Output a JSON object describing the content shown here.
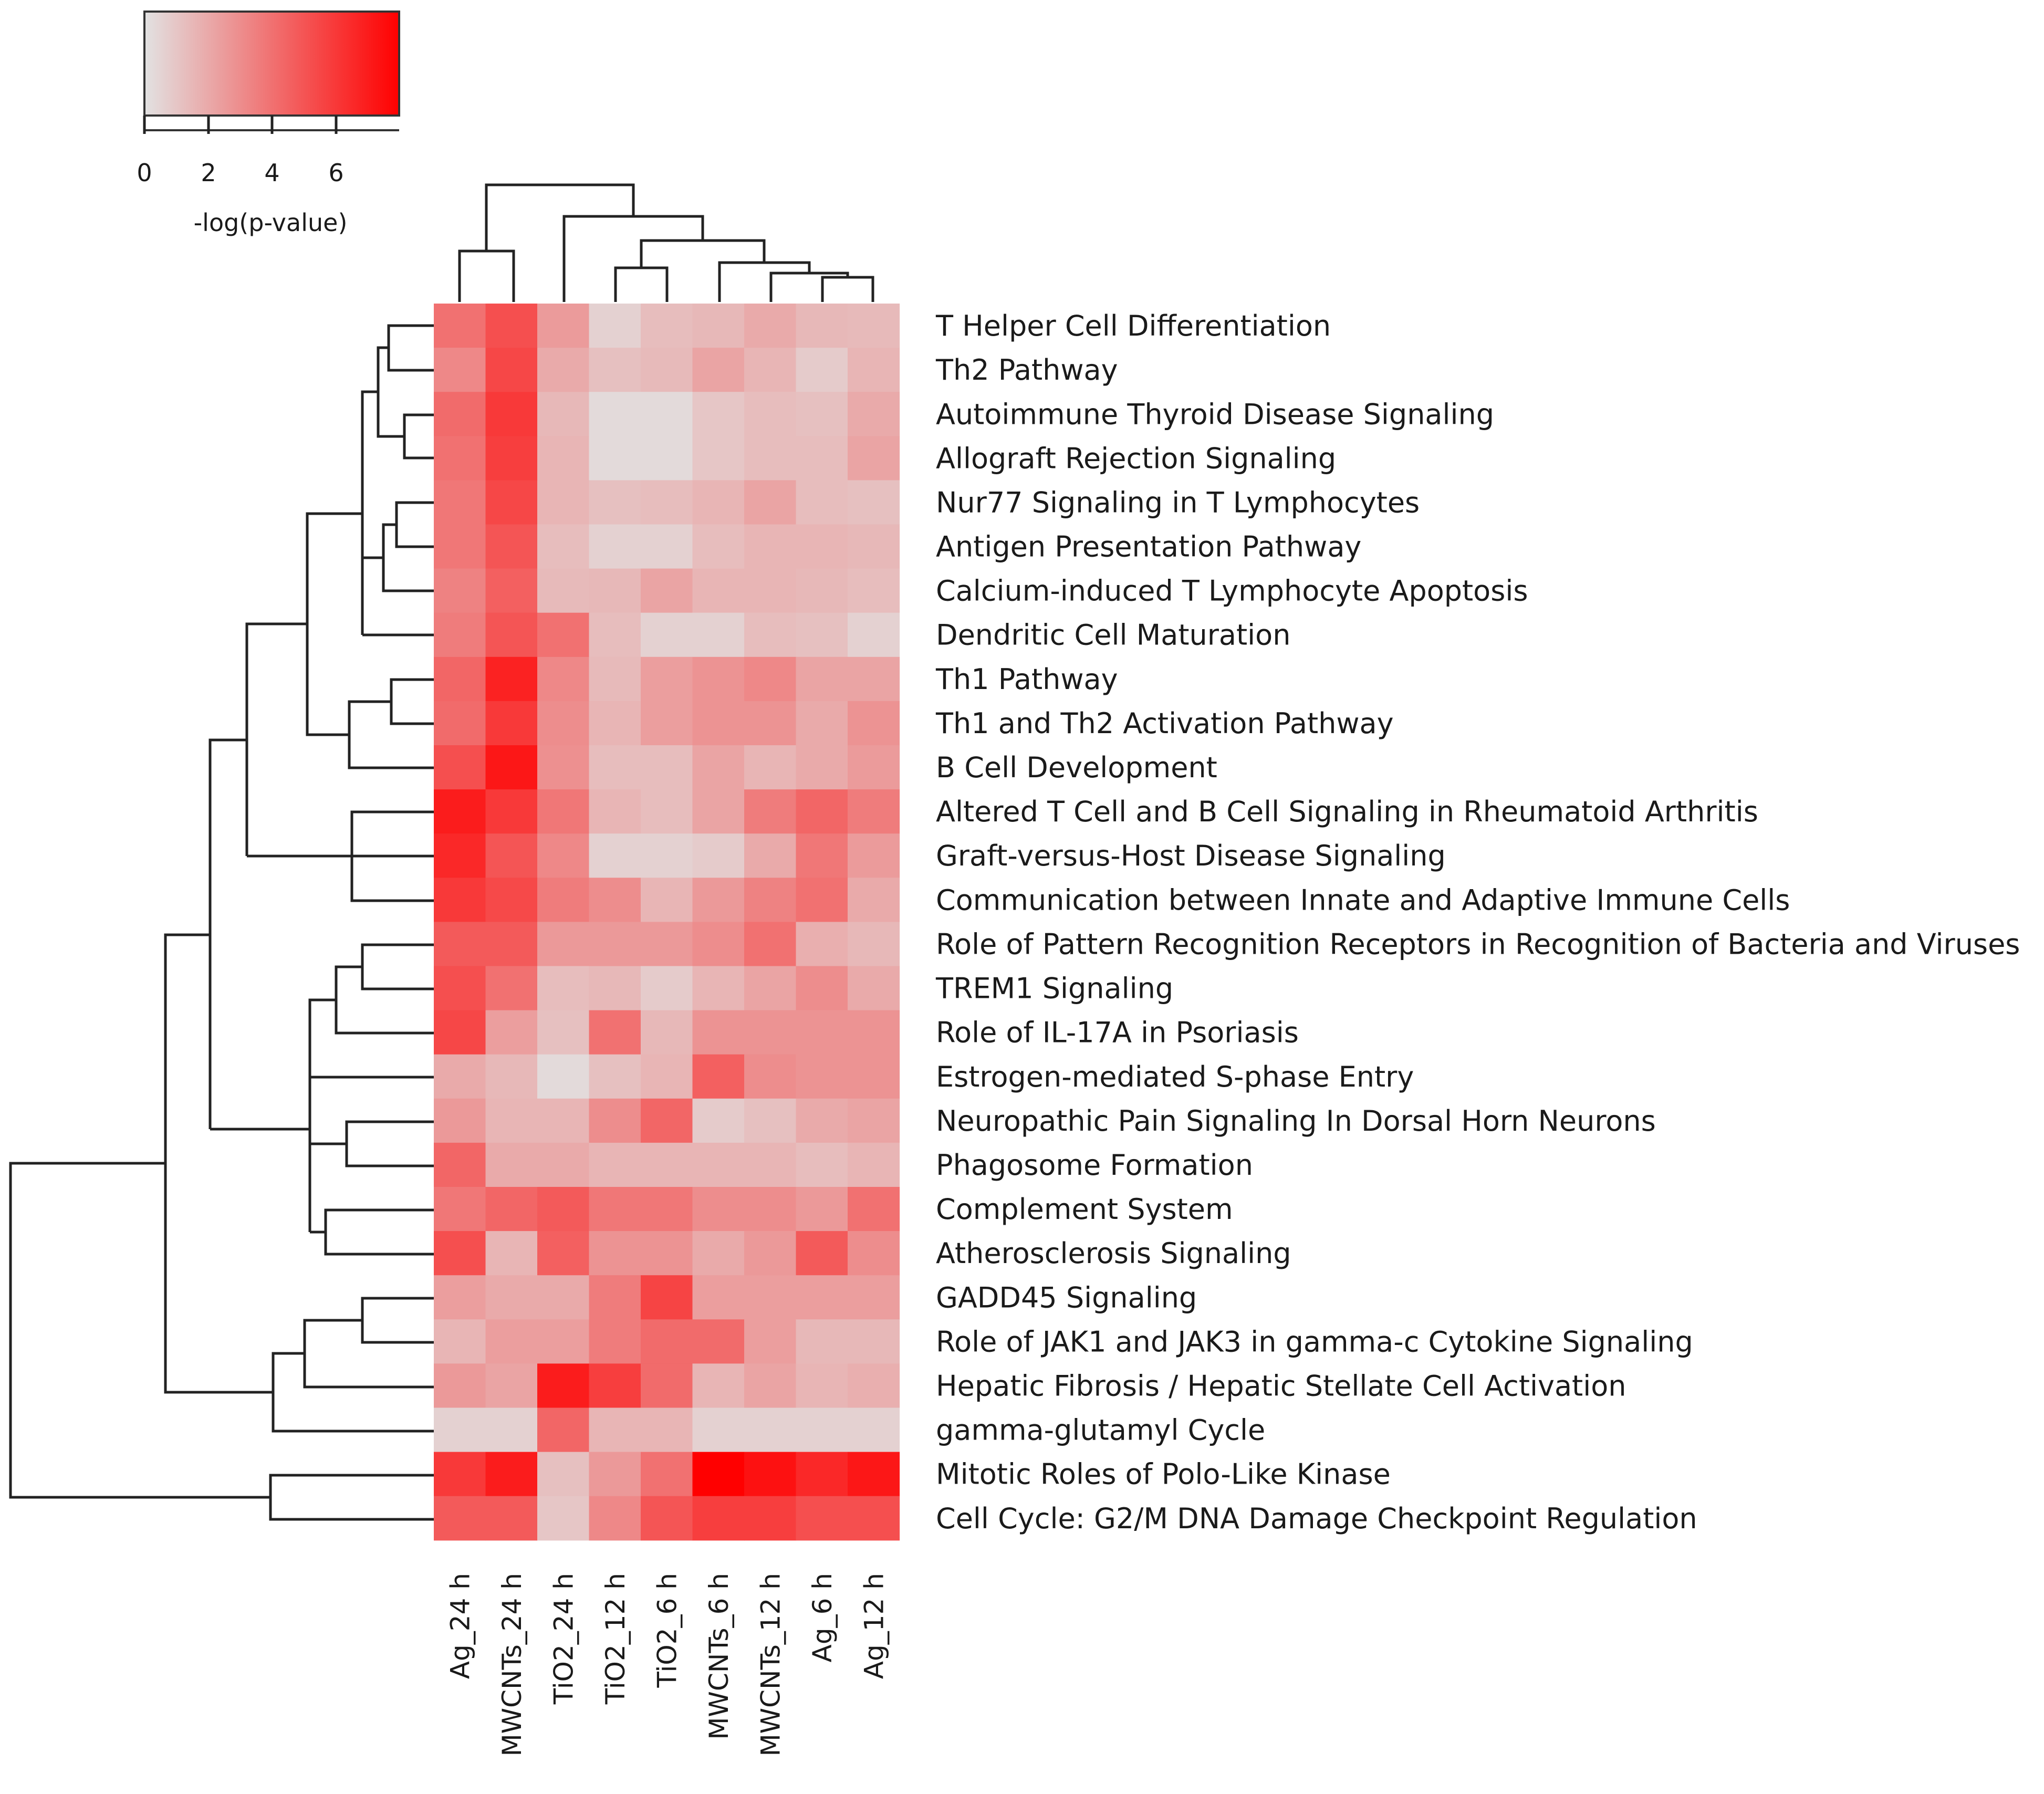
{
  "chart_data": {
    "type": "heatmap",
    "title": "",
    "legend": {
      "title": "-log(p-value)",
      "ticks": [
        "0",
        "2",
        "4",
        "6"
      ],
      "range": [
        0,
        8
      ],
      "color_low": "#e2e2e2",
      "color_high": "#ff0000"
    },
    "columns": [
      "Ag_24 h",
      "MWCNTs_24 h",
      "TiO2_24 h",
      "TiO2_12 h",
      "TiO2_6 h",
      "MWCNTs_6 h",
      "MWCNTs_12 h",
      "Ag_6 h",
      "Ag_12 h"
    ],
    "rows": [
      "T Helper Cell Differentiation",
      "Th2 Pathway",
      "Autoimmune Thyroid Disease Signaling",
      "Allograft Rejection Signaling",
      "Nur77 Signaling in T Lymphocytes",
      "Antigen Presentation Pathway",
      "Calcium-induced T Lymphocyte Apoptosis",
      "Dendritic Cell Maturation",
      "Th1 Pathway",
      "Th1 and Th2 Activation Pathway",
      "B Cell Development",
      "Altered T Cell and B Cell Signaling in Rheumatoid Arthritis",
      "Graft-versus-Host Disease Signaling",
      "Communication between Innate and Adaptive Immune Cells",
      "Role of Pattern Recognition Receptors in Recognition of Bacteria and Viruses",
      "TREM1 Signaling",
      "Role of IL-17A in Psoriasis",
      "Estrogen-mediated S-phase Entry",
      "Neuropathic Pain Signaling In Dorsal Horn Neurons",
      "Phagosome Formation",
      "Complement System",
      "Atherosclerosis Signaling",
      "GADD45 Signaling",
      "Role of JAK1 and JAK3 in gamma-c Cytokine Signaling",
      "Hepatic Fibrosis / Hepatic Stellate Cell Activation",
      "gamma-glutamyl Cycle",
      "Mitotic Roles of Polo-Like Kinase",
      "Cell Cycle: G2/M DNA Damage Checkpoint Regulation"
    ],
    "values": [
      [
        4.0,
        5.2,
        2.5,
        0.6,
        1.3,
        1.5,
        2.0,
        1.5,
        1.4
      ],
      [
        3.2,
        5.5,
        2.0,
        1.2,
        1.4,
        2.2,
        1.6,
        0.8,
        1.6
      ],
      [
        4.2,
        6.0,
        1.5,
        0.3,
        0.3,
        1.0,
        1.3,
        1.2,
        2.0
      ],
      [
        4.0,
        5.8,
        1.6,
        0.3,
        0.3,
        1.0,
        1.3,
        1.3,
        2.2
      ],
      [
        3.8,
        5.5,
        1.6,
        1.2,
        1.3,
        1.6,
        2.2,
        1.3,
        1.2
      ],
      [
        3.8,
        5.0,
        1.3,
        0.6,
        0.6,
        1.3,
        1.6,
        1.6,
        1.5
      ],
      [
        3.4,
        4.6,
        1.4,
        1.5,
        2.2,
        1.6,
        1.6,
        1.5,
        1.3
      ],
      [
        3.6,
        5.0,
        4.0,
        1.3,
        0.6,
        0.6,
        1.3,
        1.2,
        0.6
      ],
      [
        4.4,
        6.8,
        3.2,
        1.4,
        2.4,
        2.8,
        3.2,
        2.2,
        2.2
      ],
      [
        4.2,
        6.0,
        3.0,
        1.6,
        2.4,
        2.8,
        2.8,
        2.0,
        2.8
      ],
      [
        5.2,
        7.2,
        2.9,
        1.3,
        1.3,
        2.2,
        1.6,
        2.0,
        2.5
      ],
      [
        7.0,
        6.0,
        3.8,
        1.6,
        1.3,
        2.2,
        3.6,
        4.4,
        3.6
      ],
      [
        6.6,
        5.0,
        3.2,
        0.6,
        0.6,
        0.8,
        2.0,
        3.8,
        2.5
      ],
      [
        6.0,
        5.4,
        3.6,
        3.0,
        1.6,
        2.6,
        3.4,
        4.0,
        2.0
      ],
      [
        4.8,
        4.8,
        2.6,
        2.6,
        2.6,
        3.0,
        4.0,
        1.8,
        1.5
      ],
      [
        5.2,
        4.0,
        1.3,
        1.5,
        0.8,
        1.6,
        2.2,
        3.0,
        2.0
      ],
      [
        5.5,
        2.4,
        1.2,
        4.0,
        1.5,
        2.8,
        2.8,
        2.8,
        2.8
      ],
      [
        2.0,
        1.5,
        0.3,
        1.2,
        1.6,
        4.6,
        3.0,
        2.8,
        2.8
      ],
      [
        2.6,
        1.6,
        1.6,
        3.0,
        4.4,
        0.8,
        1.2,
        2.0,
        2.2
      ],
      [
        4.4,
        2.0,
        2.0,
        1.6,
        1.6,
        1.6,
        1.6,
        1.3,
        1.6
      ],
      [
        3.8,
        4.4,
        4.8,
        3.8,
        3.8,
        3.0,
        3.0,
        2.6,
        4.0
      ],
      [
        5.2,
        1.6,
        4.6,
        2.8,
        2.8,
        2.0,
        2.6,
        4.8,
        3.0
      ],
      [
        2.4,
        2.0,
        2.0,
        3.6,
        5.6,
        2.4,
        2.4,
        2.4,
        2.4
      ],
      [
        1.6,
        2.4,
        2.4,
        3.6,
        4.2,
        4.2,
        2.4,
        1.5,
        1.5
      ],
      [
        2.6,
        2.2,
        7.0,
        5.8,
        4.2,
        1.6,
        2.2,
        1.6,
        1.8
      ],
      [
        0.6,
        0.6,
        4.4,
        1.6,
        1.6,
        0.6,
        0.6,
        0.6,
        0.6
      ],
      [
        6.0,
        7.0,
        1.2,
        2.6,
        4.0,
        8.0,
        7.4,
        6.6,
        7.2
      ],
      [
        4.8,
        4.8,
        1.0,
        3.2,
        5.0,
        5.8,
        5.8,
        5.2,
        5.2
      ]
    ]
  }
}
